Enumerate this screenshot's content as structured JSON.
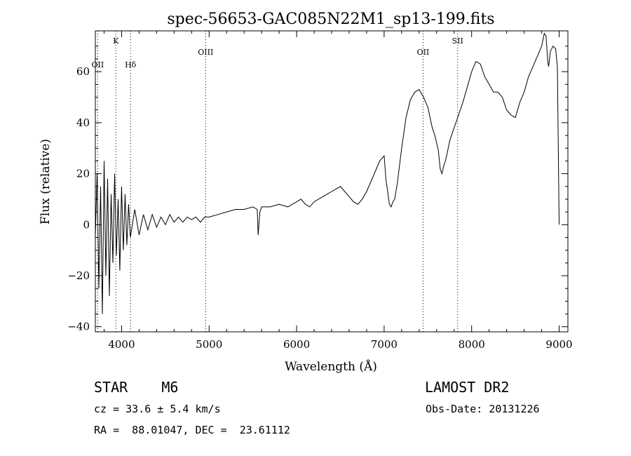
{
  "chart_data": {
    "type": "line",
    "title": "spec-56653-GAC085N22M1_sp13-199.fits",
    "xlabel": "Wavelength (Å)",
    "ylabel": "Flux (relative)",
    "xlim": [
      3700,
      9100
    ],
    "ylim": [
      -42,
      76
    ],
    "x_ticks": [
      4000,
      5000,
      6000,
      7000,
      8000,
      9000
    ],
    "y_ticks": [
      -40,
      -20,
      0,
      20,
      40,
      60
    ],
    "grid": false,
    "line_markers": [
      {
        "label": "OII",
        "x": 3727,
        "row": "lower"
      },
      {
        "label": "K",
        "x": 3934,
        "row": "upper"
      },
      {
        "label": "Hδ",
        "x": 4102,
        "row": "lower"
      },
      {
        "label": "OIII",
        "x": 4960,
        "row": "middle"
      },
      {
        "label": "OII",
        "x": 7445,
        "row": "middle"
      },
      {
        "label": "SII",
        "x": 7840,
        "row": "upper"
      }
    ],
    "series": [
      {
        "x": [
          3700,
          3720,
          3740,
          3760,
          3780,
          3800,
          3820,
          3840,
          3860,
          3880,
          3900,
          3920,
          3940,
          3960,
          3980,
          4000,
          4020,
          4040,
          4060,
          4080,
          4100,
          4150,
          4200,
          4250,
          4300,
          4350,
          4400,
          4450,
          4500,
          4550,
          4600,
          4650,
          4700,
          4750,
          4800,
          4850,
          4900,
          4950,
          5000,
          5100,
          5200,
          5300,
          5400,
          5500,
          5550,
          5560,
          5580,
          5600,
          5700,
          5800,
          5900,
          6000,
          6050,
          6100,
          6150,
          6200,
          6250,
          6300,
          6350,
          6400,
          6450,
          6500,
          6550,
          6600,
          6650,
          6700,
          6750,
          6800,
          6850,
          6900,
          6950,
          7000,
          7020,
          7040,
          7060,
          7080,
          7100,
          7120,
          7150,
          7200,
          7250,
          7300,
          7350,
          7400,
          7450,
          7500,
          7550,
          7580,
          7600,
          7620,
          7640,
          7660,
          7680,
          7700,
          7720,
          7750,
          7800,
          7850,
          7900,
          7950,
          8000,
          8050,
          8100,
          8150,
          8200,
          8250,
          8300,
          8350,
          8400,
          8450,
          8500,
          8550,
          8600,
          8650,
          8700,
          8750,
          8800,
          8830,
          8850,
          8870,
          8880,
          8900,
          8930,
          8960,
          8980,
          8990,
          9000
        ],
        "y": [
          -5,
          20,
          -25,
          15,
          -35,
          25,
          -20,
          18,
          -28,
          12,
          -15,
          20,
          -12,
          10,
          -18,
          15,
          -10,
          12,
          -8,
          8,
          -5,
          6,
          -4,
          4,
          -2,
          4,
          -1,
          3,
          0,
          4,
          1,
          3,
          1,
          3,
          2,
          3,
          1,
          3,
          3,
          4,
          5,
          6,
          6,
          7,
          6,
          -4,
          5,
          7,
          7,
          8,
          7,
          9,
          10,
          8,
          7,
          9,
          10,
          11,
          12,
          13,
          14,
          15,
          13,
          11,
          9,
          8,
          10,
          13,
          17,
          21,
          25,
          27,
          18,
          13,
          8,
          7,
          9,
          10,
          16,
          30,
          42,
          49,
          52,
          53,
          50,
          46,
          38,
          35,
          32,
          29,
          22,
          20,
          23,
          25,
          28,
          33,
          38,
          43,
          48,
          54,
          60,
          64,
          63,
          58,
          55,
          52,
          52,
          50,
          45,
          43,
          42,
          48,
          52,
          58,
          62,
          66,
          70,
          75,
          74,
          64,
          62,
          68,
          70,
          69,
          62,
          30,
          0
        ]
      }
    ]
  },
  "info": {
    "object_class": "STAR    M6",
    "survey": "LAMOST DR2",
    "cz": "cz = 33.6 ± 5.4 km/s",
    "obs_date": "Obs-Date: 20131226",
    "coords": "RA =  88.01047, DEC =  23.61112"
  }
}
